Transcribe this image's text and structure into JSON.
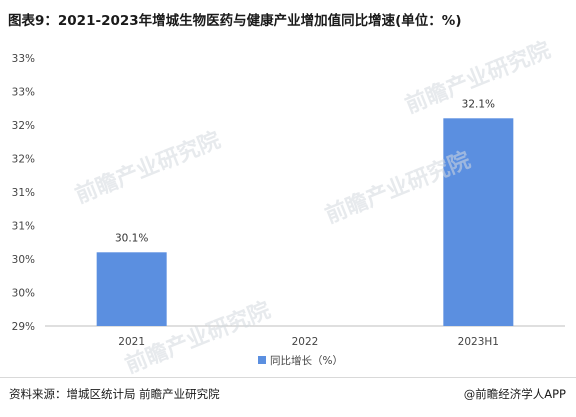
{
  "title": "图表9：2021-2023年增城生物医药与健康产业增加值同比增速(单位：%)",
  "chart_data": {
    "type": "bar",
    "categories": [
      "2021",
      "2022",
      "2023H1"
    ],
    "series": [
      {
        "name": "同比增长（%）",
        "values": [
          30.1,
          null,
          32.1
        ],
        "data_labels": [
          "30.1%",
          "",
          "32.1%"
        ],
        "color": "#5b8fe0"
      }
    ],
    "yticks": [
      29,
      29.5,
      30,
      30.5,
      31,
      31.5,
      32,
      32.5,
      33
    ],
    "ytick_labels": [
      "29%",
      "30%",
      "30%",
      "31%",
      "31%",
      "32%",
      "32%",
      "33%",
      "33%"
    ],
    "ylim": [
      29,
      33
    ],
    "grid": false,
    "legend_position": "bottom"
  },
  "watermark_text": "前瞻产业研究院",
  "footer": {
    "source": "资料来源：增城区统计局 前瞻产业研究院",
    "brand": "@前瞻经济学人APP"
  }
}
